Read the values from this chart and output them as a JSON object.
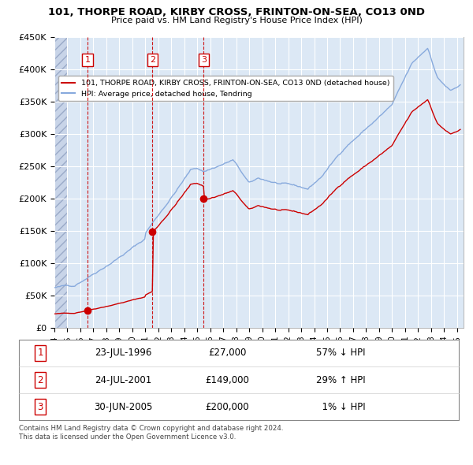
{
  "title": "101, THORPE ROAD, KIRBY CROSS, FRINTON-ON-SEA, CO13 0ND",
  "subtitle": "Price paid vs. HM Land Registry's House Price Index (HPI)",
  "ylim": [
    0,
    450000
  ],
  "yticks": [
    0,
    50000,
    100000,
    150000,
    200000,
    250000,
    300000,
    350000,
    400000,
    450000
  ],
  "ytick_labels": [
    "£0",
    "£50K",
    "£100K",
    "£150K",
    "£200K",
    "£250K",
    "£300K",
    "£350K",
    "£400K",
    "£450K"
  ],
  "xlim_start": 1994.0,
  "xlim_end": 2025.5,
  "transactions": [
    {
      "num": 1,
      "date": "23-JUL-1996",
      "price": 27000,
      "year": 1996.55,
      "pct": "57%",
      "dir": "↓"
    },
    {
      "num": 2,
      "date": "24-JUL-2001",
      "price": 149000,
      "year": 2001.55,
      "pct": "29%",
      "dir": "↑"
    },
    {
      "num": 3,
      "date": "30-JUN-2005",
      "price": 200000,
      "year": 2005.5,
      "pct": "1%",
      "dir": "↓"
    }
  ],
  "legend_house": "101, THORPE ROAD, KIRBY CROSS, FRINTON-ON-SEA, CO13 0ND (detached house)",
  "legend_hpi": "HPI: Average price, detached house, Tendring",
  "footer": "Contains HM Land Registry data © Crown copyright and database right 2024.\nThis data is licensed under the Open Government Licence v3.0.",
  "house_color": "#cc0000",
  "hpi_color": "#88aadd",
  "bg_color": "#dce8f5",
  "hatch_color": "#b0bcd4",
  "grid_color": "#ffffff",
  "table_rows": [
    {
      "num": 1,
      "date": "23-JUL-1996",
      "price": "£27,000",
      "pct": "57% ↓ HPI"
    },
    {
      "num": 2,
      "date": "24-JUL-2001",
      "price": "£149,000",
      "pct": "29% ↑ HPI"
    },
    {
      "num": 3,
      "date": "30-JUN-2005",
      "price": "£200,000",
      "pct": "  1% ↓ HPI"
    }
  ]
}
